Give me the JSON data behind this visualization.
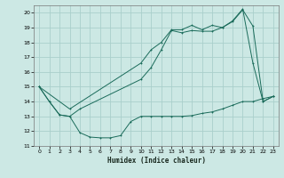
{
  "xlabel": "Humidex (Indice chaleur)",
  "xlim": [
    -0.5,
    23.5
  ],
  "ylim": [
    11,
    20.5
  ],
  "yticks": [
    11,
    12,
    13,
    14,
    15,
    16,
    17,
    18,
    19,
    20
  ],
  "xticks": [
    0,
    1,
    2,
    3,
    4,
    5,
    6,
    7,
    8,
    9,
    10,
    11,
    12,
    13,
    14,
    15,
    16,
    17,
    18,
    19,
    20,
    21,
    22,
    23
  ],
  "bg_color": "#cce8e4",
  "grid_color": "#aacfcb",
  "line_color": "#1a6b5a",
  "line1_x": [
    0,
    1,
    2,
    3,
    4,
    5,
    6,
    7,
    8,
    9,
    10,
    11,
    12,
    13,
    14,
    15,
    16,
    17,
    18,
    19,
    20,
    21,
    22,
    23
  ],
  "line1_y": [
    15.0,
    14.0,
    13.1,
    13.0,
    11.9,
    11.6,
    11.55,
    11.55,
    11.7,
    12.65,
    13.0,
    13.0,
    13.0,
    13.0,
    13.0,
    13.05,
    13.2,
    13.3,
    13.5,
    13.75,
    14.0,
    14.0,
    14.2,
    14.35
  ],
  "line2_x": [
    0,
    1,
    2,
    3,
    4,
    10,
    11,
    12,
    13,
    14,
    15,
    16,
    17,
    18,
    19,
    20,
    21,
    22,
    23
  ],
  "line2_y": [
    15.0,
    14.0,
    13.1,
    13.0,
    13.5,
    15.5,
    16.3,
    17.5,
    18.8,
    18.65,
    18.8,
    18.75,
    18.75,
    19.0,
    19.4,
    20.2,
    19.1,
    14.0,
    14.35
  ],
  "line3_x": [
    0,
    3,
    10,
    11,
    12,
    13,
    14,
    15,
    16,
    17,
    18,
    19,
    20,
    21,
    22,
    23
  ],
  "line3_y": [
    15.0,
    13.5,
    16.6,
    17.5,
    18.0,
    18.85,
    18.85,
    19.15,
    18.85,
    19.15,
    19.0,
    19.45,
    20.25,
    16.6,
    14.0,
    14.35
  ]
}
